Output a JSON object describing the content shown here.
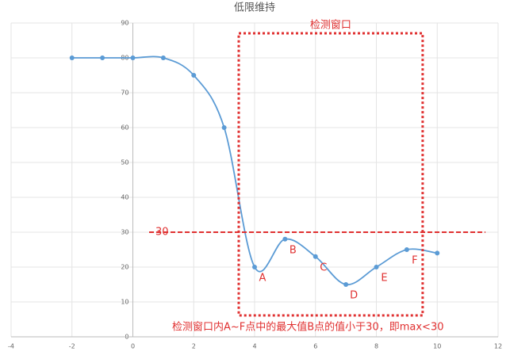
{
  "chart_data": {
    "type": "line",
    "title": "低限维持",
    "x": [
      -2,
      -1,
      0,
      1,
      2,
      3,
      4,
      5,
      6,
      7,
      8,
      9,
      10
    ],
    "series": [
      {
        "color": "#5b9bd5",
        "values": [
          80,
          80,
          80,
          80,
          75,
          60,
          20,
          28,
          23,
          15,
          20,
          25,
          24
        ]
      }
    ],
    "point_labels": [
      null,
      null,
      null,
      null,
      null,
      null,
      "A",
      "B",
      "C",
      "D",
      "E",
      "F",
      null
    ],
    "window_label": "检测窗口",
    "threshold": 30,
    "threshold_color": "#e03030",
    "note": "检测窗口内A~F点中的最大值B点的值小于30，即max<30",
    "xlim": [
      -4,
      12
    ],
    "xticks": [
      -4,
      -2,
      0,
      2,
      4,
      6,
      8,
      10,
      12
    ],
    "ylim": [
      0,
      90
    ],
    "yticks": [
      0,
      10,
      20,
      30,
      40,
      50,
      60,
      70,
      80,
      90
    ],
    "grid": true
  }
}
